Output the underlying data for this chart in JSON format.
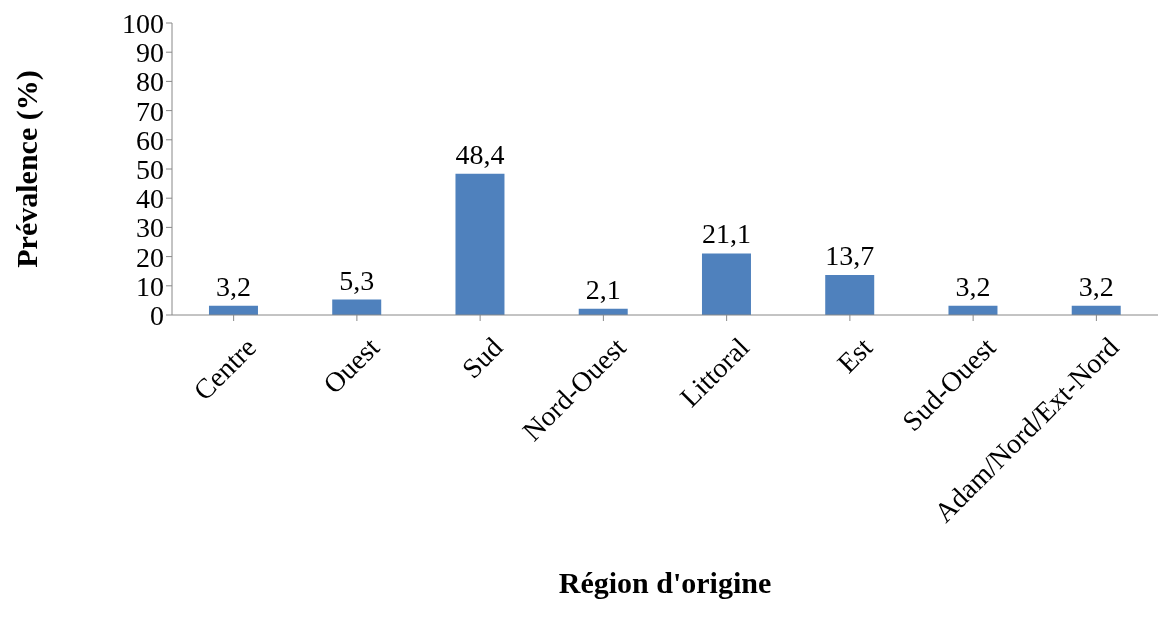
{
  "chart_data": {
    "type": "bar",
    "xlabel": "Région d'origine",
    "ylabel": "Prévalence (%)",
    "categories": [
      "Centre",
      "Ouest",
      "Sud",
      "Nord-Ouest",
      "Littoral",
      "Est",
      "Sud-Ouest",
      "Adam/Nord/Ext-Nord"
    ],
    "values": [
      3.2,
      5.3,
      48.4,
      2.1,
      21.1,
      13.7,
      3.2,
      3.2
    ],
    "value_labels": [
      "3,2",
      "5,3",
      "48,4",
      "2,1",
      "21,1",
      "13,7",
      "3,2",
      "3,2"
    ],
    "color": "#4f81bd",
    "ylim": [
      0,
      100
    ],
    "yticks": [
      0,
      10,
      20,
      30,
      40,
      50,
      60,
      70,
      80,
      90,
      100
    ]
  }
}
